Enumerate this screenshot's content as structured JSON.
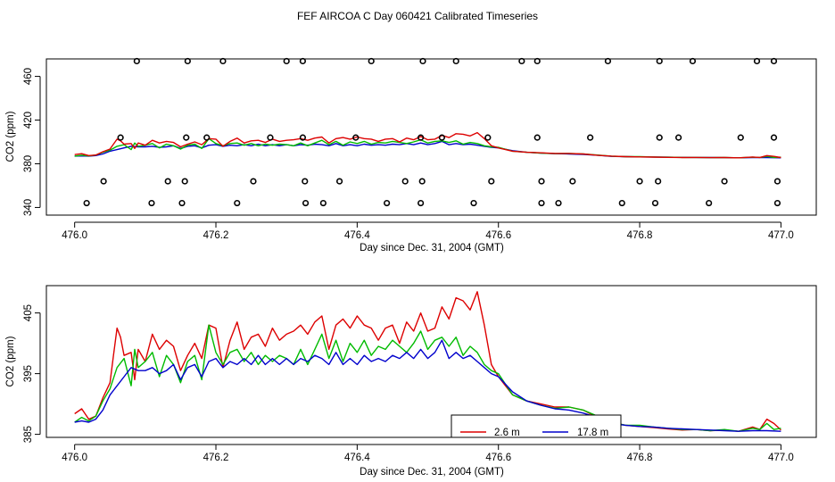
{
  "figure_title": "FEF AIRCOA C  Day 060421  Calibrated Timeseries",
  "colors": {
    "series_2_6m": "#dd0000",
    "series_mid": "#00bb00",
    "series_17_8m": "#0000cc",
    "calibration": "#000000"
  },
  "chart_data": [
    {
      "type": "line",
      "panel": "top",
      "title": "",
      "xlabel": "Day since Dec. 31, 2004 (GMT)",
      "ylabel": "CO2 (ppm)",
      "xlim": [
        475.96,
        477.05
      ],
      "ylim": [
        333,
        476
      ],
      "xticks": [
        476.0,
        476.2,
        476.4,
        476.6,
        476.8,
        477.0
      ],
      "xtick_labels": [
        "476.0",
        "476.2",
        "476.4",
        "476.6",
        "476.8",
        "477.0"
      ],
      "yticks": [
        340,
        380,
        420,
        460
      ],
      "ytick_labels": [
        "340",
        "380",
        "420",
        "460"
      ],
      "grid": false,
      "calibration_points": {
        "y474": [
          476.088,
          476.16,
          476.21,
          476.3,
          476.323,
          476.42,
          476.493,
          476.54,
          476.633,
          476.655,
          476.755,
          476.828,
          476.875,
          476.966,
          476.99
        ],
        "y404": [
          476.065,
          476.158,
          476.187,
          476.277,
          476.323,
          476.398,
          476.49,
          476.52,
          476.585,
          476.655,
          476.73,
          476.828,
          476.855,
          476.943,
          476.99
        ],
        "y364": [
          476.041,
          476.132,
          476.156,
          476.253,
          476.326,
          476.375,
          476.468,
          476.492,
          476.59,
          476.661,
          476.705,
          476.8,
          476.826,
          476.92,
          476.995
        ],
        "y344": [
          476.017,
          476.109,
          476.152,
          476.23,
          476.327,
          476.352,
          476.442,
          476.49,
          476.565,
          476.661,
          476.685,
          476.775,
          476.822,
          476.898,
          476.995
        ]
      }
    },
    {
      "type": "line",
      "panel": "bottom",
      "title": "",
      "xlabel": "Day since Dec. 31, 2004 (GMT)",
      "ylabel": "CO2 (ppm)",
      "xlim": [
        475.96,
        477.05
      ],
      "ylim": [
        384.5,
        409.5
      ],
      "xticks": [
        476.0,
        476.2,
        476.4,
        476.6,
        476.8,
        477.0
      ],
      "xtick_labels": [
        "476.0",
        "476.2",
        "476.4",
        "476.6",
        "476.8",
        "477.0"
      ],
      "yticks": [
        385,
        395,
        405
      ],
      "ytick_labels": [
        "385",
        "395",
        "405"
      ],
      "grid": false,
      "legend": {
        "placement": "bottom-center",
        "entries": [
          "2.6 m",
          "17.8 m"
        ]
      },
      "series": [
        {
          "name": "2.6 m",
          "color": "#dd0000",
          "x": [
            476.0,
            476.01,
            476.02,
            476.03,
            476.04,
            476.05,
            476.055,
            476.06,
            476.065,
            476.07,
            476.08,
            476.085,
            476.09,
            476.1,
            476.11,
            476.12,
            476.13,
            476.14,
            476.15,
            476.16,
            476.17,
            476.18,
            476.19,
            476.2,
            476.21,
            476.22,
            476.23,
            476.24,
            476.25,
            476.26,
            476.27,
            476.28,
            476.29,
            476.3,
            476.31,
            476.32,
            476.33,
            476.34,
            476.35,
            476.36,
            476.37,
            476.38,
            476.39,
            476.4,
            476.41,
            476.42,
            476.43,
            476.44,
            476.45,
            476.46,
            476.47,
            476.48,
            476.49,
            476.5,
            476.51,
            476.52,
            476.53,
            476.54,
            476.55,
            476.56,
            476.57,
            476.58,
            476.59,
            476.6,
            476.62,
            476.64,
            476.66,
            476.68,
            476.7,
            476.72,
            476.74,
            476.76,
            476.78,
            476.8,
            476.82,
            476.84,
            476.86,
            476.88,
            476.9,
            476.92,
            476.94,
            476.96,
            476.97,
            476.98,
            476.99,
            477.0
          ],
          "values": [
            388.4,
            389.2,
            387.5,
            388.0,
            391.0,
            393.5,
            398.0,
            402.5,
            401.0,
            398.0,
            398.5,
            394.0,
            399.0,
            397.0,
            401.5,
            399.0,
            400.5,
            399.5,
            395.5,
            398.0,
            400.0,
            397.5,
            403.0,
            402.5,
            396.0,
            400.5,
            403.5,
            399.0,
            401.0,
            401.5,
            399.5,
            402.5,
            400.5,
            401.5,
            402.0,
            403.0,
            401.5,
            403.5,
            404.5,
            399.0,
            403.0,
            404.0,
            402.5,
            404.5,
            403.0,
            402.5,
            400.5,
            402.5,
            403.0,
            400.0,
            403.5,
            402.0,
            405.0,
            402.0,
            402.5,
            406.0,
            404.0,
            407.5,
            407.0,
            405.5,
            408.5,
            403.0,
            396.5,
            394.5,
            391.5,
            390.5,
            390.0,
            389.5,
            389.5,
            389.0,
            387.8,
            387.0,
            386.5,
            386.3,
            386.1,
            385.9,
            385.7,
            385.8,
            385.6,
            385.7,
            385.5,
            386.2,
            385.8,
            387.5,
            386.8,
            385.7
          ]
        },
        {
          "name": "",
          "color": "#00bb00",
          "x": [
            476.0,
            476.01,
            476.02,
            476.03,
            476.04,
            476.05,
            476.06,
            476.07,
            476.08,
            476.085,
            476.09,
            476.1,
            476.11,
            476.12,
            476.13,
            476.14,
            476.15,
            476.16,
            476.17,
            476.18,
            476.19,
            476.2,
            476.21,
            476.22,
            476.23,
            476.24,
            476.25,
            476.26,
            476.27,
            476.28,
            476.29,
            476.3,
            476.31,
            476.32,
            476.33,
            476.34,
            476.35,
            476.36,
            476.37,
            476.38,
            476.39,
            476.4,
            476.41,
            476.42,
            476.43,
            476.44,
            476.45,
            476.46,
            476.47,
            476.48,
            476.49,
            476.5,
            476.51,
            476.52,
            476.53,
            476.54,
            476.55,
            476.56,
            476.57,
            476.58,
            476.59,
            476.6,
            476.62,
            476.64,
            476.66,
            476.68,
            476.7,
            476.72,
            476.74,
            476.76,
            476.78,
            476.8,
            476.82,
            476.84,
            476.86,
            476.88,
            476.9,
            476.92,
            476.94,
            476.96,
            476.97,
            476.98,
            476.99,
            477.0
          ],
          "values": [
            387.0,
            387.8,
            387.2,
            388.0,
            390.5,
            392.5,
            396.0,
            397.5,
            393.0,
            399.0,
            396.0,
            397.0,
            398.5,
            394.5,
            398.0,
            396.5,
            393.5,
            397.0,
            398.0,
            394.0,
            403.0,
            398.5,
            396.5,
            398.5,
            399.0,
            397.0,
            398.5,
            396.5,
            398.0,
            397.0,
            398.0,
            397.5,
            396.5,
            399.0,
            396.5,
            399.0,
            401.5,
            397.5,
            400.5,
            397.0,
            400.0,
            398.5,
            400.5,
            398.0,
            399.5,
            399.0,
            400.5,
            399.5,
            398.5,
            400.0,
            402.0,
            399.0,
            400.5,
            401.0,
            399.5,
            401.0,
            398.0,
            399.5,
            398.5,
            396.5,
            395.5,
            395.0,
            391.5,
            390.5,
            389.8,
            389.3,
            389.5,
            389.0,
            388.0,
            387.0,
            386.5,
            386.5,
            386.2,
            386.0,
            385.8,
            385.8,
            385.6,
            385.8,
            385.5,
            386.0,
            385.8,
            386.8,
            385.8,
            386.0
          ]
        },
        {
          "name": "17.8 m",
          "color": "#0000cc",
          "x": [
            476.0,
            476.01,
            476.02,
            476.03,
            476.04,
            476.05,
            476.06,
            476.07,
            476.08,
            476.09,
            476.1,
            476.11,
            476.12,
            476.13,
            476.14,
            476.15,
            476.16,
            476.17,
            476.18,
            476.19,
            476.2,
            476.21,
            476.22,
            476.23,
            476.24,
            476.25,
            476.26,
            476.27,
            476.28,
            476.29,
            476.3,
            476.31,
            476.32,
            476.33,
            476.34,
            476.35,
            476.36,
            476.37,
            476.38,
            476.39,
            476.4,
            476.41,
            476.42,
            476.43,
            476.44,
            476.45,
            476.46,
            476.47,
            476.48,
            476.49,
            476.5,
            476.51,
            476.52,
            476.53,
            476.54,
            476.55,
            476.56,
            476.57,
            476.58,
            476.59,
            476.6,
            476.62,
            476.64,
            476.66,
            476.68,
            476.7,
            476.72,
            476.74,
            476.76,
            476.78,
            476.8,
            476.82,
            476.84,
            476.86,
            476.88,
            476.9,
            476.92,
            476.94,
            476.96,
            476.98,
            477.0
          ],
          "values": [
            387.0,
            387.2,
            387.0,
            387.5,
            389.0,
            391.5,
            393.0,
            394.5,
            396.0,
            395.5,
            395.5,
            396.0,
            395.0,
            395.5,
            396.5,
            394.0,
            396.0,
            396.5,
            394.5,
            397.0,
            397.5,
            396.0,
            397.0,
            396.5,
            397.5,
            396.5,
            398.0,
            396.5,
            397.5,
            396.5,
            397.5,
            396.5,
            397.5,
            397.0,
            398.0,
            397.5,
            396.5,
            398.5,
            396.5,
            397.5,
            396.5,
            398.0,
            397.0,
            397.5,
            397.0,
            398.0,
            397.5,
            398.5,
            397.5,
            399.0,
            397.5,
            398.5,
            400.5,
            397.5,
            398.5,
            397.5,
            398.0,
            397.0,
            396.0,
            395.0,
            394.5,
            392.0,
            390.5,
            389.8,
            389.2,
            389.0,
            388.5,
            387.8,
            386.8,
            386.5,
            386.3,
            386.2,
            386.0,
            385.9,
            385.8,
            385.7,
            385.6,
            385.5,
            385.6,
            385.6,
            385.5
          ]
        }
      ]
    }
  ]
}
